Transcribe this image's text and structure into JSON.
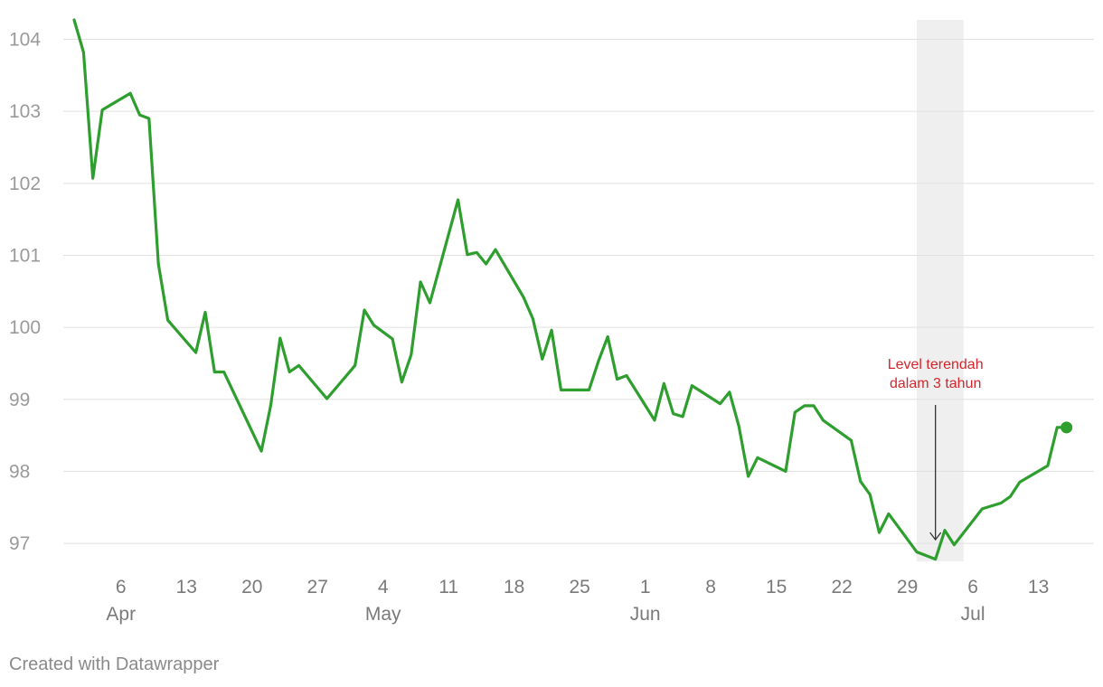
{
  "chart_data": {
    "type": "line",
    "title": "",
    "xlabel": "",
    "ylabel": "",
    "ylim": [
      96.75,
      104.27
    ],
    "y_ticks": [
      97,
      98,
      99,
      100,
      101,
      102,
      103,
      104
    ],
    "y_tick_labels": [
      "97",
      "98",
      "99",
      "100",
      "101",
      "102",
      "103",
      "104"
    ],
    "xlim": [
      "2022-04-01",
      "2022-07-17"
    ],
    "x_ticks": [
      {
        "date": "2022-04-06",
        "label": "6",
        "month": "Apr"
      },
      {
        "date": "2022-04-13",
        "label": "13",
        "month": ""
      },
      {
        "date": "2022-04-20",
        "label": "20",
        "month": ""
      },
      {
        "date": "2022-04-27",
        "label": "27",
        "month": ""
      },
      {
        "date": "2022-05-04",
        "label": "4",
        "month": "May"
      },
      {
        "date": "2022-05-11",
        "label": "11",
        "month": ""
      },
      {
        "date": "2022-05-18",
        "label": "18",
        "month": ""
      },
      {
        "date": "2022-05-25",
        "label": "25",
        "month": ""
      },
      {
        "date": "2022-06-01",
        "label": "1",
        "month": "Jun"
      },
      {
        "date": "2022-06-08",
        "label": "8",
        "month": ""
      },
      {
        "date": "2022-06-15",
        "label": "15",
        "month": ""
      },
      {
        "date": "2022-06-22",
        "label": "22",
        "month": ""
      },
      {
        "date": "2022-06-29",
        "label": "29",
        "month": ""
      },
      {
        "date": "2022-07-06",
        "label": "6",
        "month": "Jul"
      },
      {
        "date": "2022-07-13",
        "label": "13",
        "month": ""
      }
    ],
    "grid": true,
    "color": "#2e9e2e",
    "highlight_band": {
      "from": "2022-06-30",
      "to": "2022-07-05",
      "color": "#efefef"
    },
    "annotation": {
      "lines": [
        "Level terendah",
        "dalam 3 tahun"
      ],
      "date": "2022-07-02",
      "value": 97.05,
      "color": "#d3262c"
    },
    "series": [
      {
        "x": [
          "2022-04-01",
          "2022-04-02",
          "2022-04-03",
          "2022-04-04",
          "2022-04-07",
          "2022-04-08",
          "2022-04-09",
          "2022-04-10",
          "2022-04-11",
          "2022-04-14",
          "2022-04-15",
          "2022-04-16",
          "2022-04-17",
          "2022-04-21",
          "2022-04-22",
          "2022-04-23",
          "2022-04-24",
          "2022-04-25",
          "2022-04-28",
          "2022-05-01",
          "2022-05-02",
          "2022-05-03",
          "2022-05-05",
          "2022-05-06",
          "2022-05-07",
          "2022-05-08",
          "2022-05-09",
          "2022-05-12",
          "2022-05-13",
          "2022-05-14",
          "2022-05-15",
          "2022-05-16",
          "2022-05-19",
          "2022-05-20",
          "2022-05-21",
          "2022-05-22",
          "2022-05-23",
          "2022-05-26",
          "2022-05-27",
          "2022-05-28",
          "2022-05-29",
          "2022-05-30",
          "2022-06-02",
          "2022-06-03",
          "2022-06-04",
          "2022-06-05",
          "2022-06-06",
          "2022-06-09",
          "2022-06-10",
          "2022-06-11",
          "2022-06-12",
          "2022-06-13",
          "2022-06-16",
          "2022-06-17",
          "2022-06-18",
          "2022-06-19",
          "2022-06-20",
          "2022-06-23",
          "2022-06-24",
          "2022-06-25",
          "2022-06-26",
          "2022-06-27",
          "2022-06-30",
          "2022-07-02",
          "2022-07-03",
          "2022-07-04",
          "2022-07-07",
          "2022-07-09",
          "2022-07-10",
          "2022-07-11",
          "2022-07-14",
          "2022-07-15",
          "2022-07-16"
        ],
        "y": [
          104.27,
          103.82,
          102.07,
          103.02,
          103.25,
          102.95,
          102.9,
          100.88,
          100.1,
          99.65,
          100.21,
          99.38,
          99.38,
          98.28,
          98.92,
          99.85,
          99.38,
          99.47,
          99.01,
          99.47,
          100.24,
          100.03,
          99.84,
          99.24,
          99.62,
          100.63,
          100.34,
          101.77,
          101.01,
          101.04,
          100.88,
          101.08,
          100.42,
          100.12,
          99.56,
          99.96,
          99.13,
          99.13,
          99.53,
          99.87,
          99.28,
          99.33,
          98.71,
          99.22,
          98.8,
          98.76,
          99.19,
          98.94,
          99.1,
          98.63,
          97.93,
          98.19,
          98.0,
          98.82,
          98.91,
          98.91,
          98.71,
          98.43,
          97.86,
          97.68,
          97.15,
          97.41,
          96.88,
          96.78,
          97.18,
          96.98,
          97.48,
          97.56,
          97.65,
          97.85,
          98.08,
          98.61,
          98.61
        ]
      }
    ]
  },
  "footer": {
    "credit": "Created with Datawrapper"
  }
}
